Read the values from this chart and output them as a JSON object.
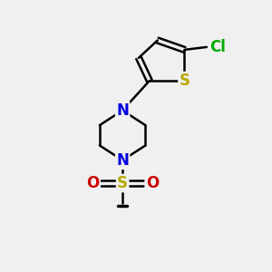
{
  "background_color": "#f0f0f0",
  "bond_color": "#000000",
  "bond_width": 1.8,
  "atom_colors": {
    "S_thiophene": "#b8a800",
    "S_sulfonyl": "#b8a800",
    "Cl": "#00aa00",
    "N": "#0000dd",
    "O": "#cc0000",
    "C": "#000000"
  },
  "font_size_atoms": 12,
  "font_size_ch3": 11
}
